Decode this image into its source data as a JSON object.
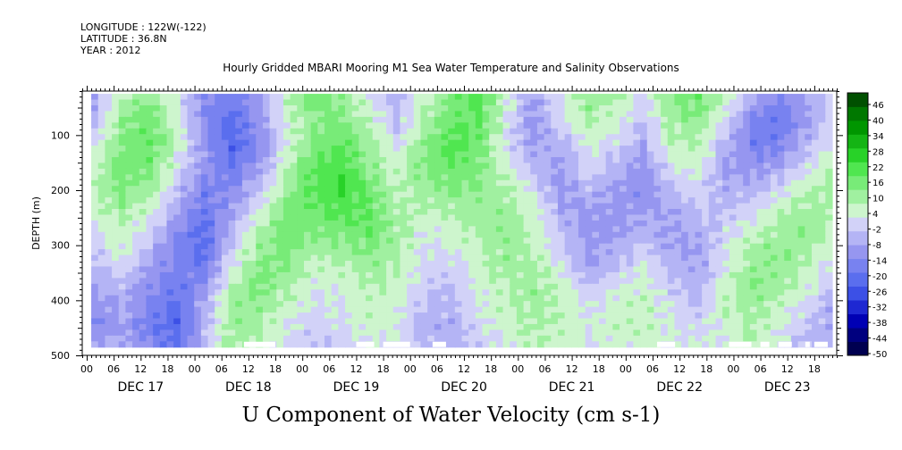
{
  "header": {
    "longitude": "LONGITUDE : 122W(-122)",
    "latitude": "LATITUDE : 36.8N",
    "year": "YEAR : 2012"
  },
  "chart_data": {
    "type": "heatmap",
    "title": "Hourly Gridded MBARI Mooring M1 Sea Water Temperature and Salinity Observations",
    "xlabel": "U Component of Water Velocity (cm s-1)",
    "ylabel": "DEPTH (m)",
    "y_ticks": [
      100,
      200,
      300,
      400,
      500
    ],
    "ylim": [
      500,
      20
    ],
    "y_inverted": true,
    "x_hour_labels": [
      "00",
      "06",
      "12",
      "18",
      "00",
      "06",
      "12",
      "18",
      "00",
      "06",
      "12",
      "18",
      "00",
      "06",
      "12",
      "18",
      "00",
      "06",
      "12",
      "18",
      "00",
      "06",
      "12",
      "18",
      "00",
      "06",
      "12",
      "18"
    ],
    "x_day_labels": [
      "DEC 17",
      "DEC 18",
      "DEC 19",
      "DEC 20",
      "DEC 21",
      "DEC 22",
      "DEC 23"
    ],
    "xlim_hours": [
      -1,
      167
    ],
    "data_start_hour": 1,
    "data_depth_range": [
      25,
      485
    ],
    "colorbar": {
      "labels": [
        "46",
        "40",
        "34",
        "28",
        "22",
        "16",
        "10",
        "4",
        "-2",
        "-8",
        "-14",
        "-20",
        "-26",
        "-32",
        "-38",
        "-44",
        "-50"
      ],
      "range": [
        -50,
        52
      ],
      "colors": [
        "#000050",
        "#00007f",
        "#0000b4",
        "#1e28d2",
        "#3c50e6",
        "#5a6eee",
        "#7882f0",
        "#9696f0",
        "#b4b4f5",
        "#d2d2f8",
        "#cdf5cd",
        "#a0f0a0",
        "#78eb78",
        "#50e650",
        "#28d228",
        "#14b414",
        "#009600",
        "#007800",
        "#005000"
      ]
    },
    "grid_hours": [
      0,
      12,
      24,
      36,
      48,
      60,
      72,
      84,
      96,
      108,
      120,
      132,
      144,
      156
    ],
    "grid_depths": [
      60,
      100,
      140,
      180,
      220,
      260,
      300,
      340,
      380,
      420,
      460
    ],
    "values": [
      [
        -8,
        10,
        14,
        2,
        -10,
        -16,
        -8,
        8,
        18,
        12,
        4,
        -6,
        6,
        16,
        22,
        6,
        -8,
        4,
        14,
        10,
        2,
        16,
        18,
        8,
        -6,
        -12,
        -6,
        4
      ],
      [
        -4,
        14,
        18,
        6,
        -12,
        -20,
        -10,
        6,
        14,
        16,
        8,
        -2,
        10,
        18,
        20,
        4,
        -10,
        2,
        10,
        6,
        -2,
        12,
        14,
        2,
        -14,
        -18,
        -8,
        2
      ],
      [
        2,
        16,
        20,
        8,
        -10,
        -22,
        -12,
        4,
        16,
        20,
        12,
        2,
        14,
        22,
        18,
        2,
        -8,
        -4,
        6,
        2,
        -6,
        8,
        10,
        -4,
        -16,
        -14,
        -4,
        6
      ],
      [
        6,
        18,
        16,
        4,
        -8,
        -18,
        -8,
        8,
        20,
        24,
        14,
        6,
        16,
        20,
        16,
        6,
        -4,
        -8,
        2,
        -4,
        -10,
        4,
        6,
        -8,
        -10,
        -6,
        2,
        10
      ],
      [
        8,
        16,
        12,
        -2,
        -14,
        -12,
        -2,
        12,
        22,
        26,
        18,
        8,
        12,
        16,
        14,
        10,
        2,
        -10,
        -4,
        -8,
        -12,
        -2,
        2,
        -6,
        -4,
        2,
        8,
        12
      ],
      [
        6,
        12,
        6,
        -8,
        -18,
        -8,
        4,
        16,
        18,
        22,
        20,
        10,
        8,
        10,
        12,
        12,
        6,
        -6,
        -8,
        -10,
        -8,
        -6,
        -2,
        -2,
        2,
        8,
        12,
        10
      ],
      [
        2,
        8,
        0,
        -12,
        -20,
        -4,
        10,
        18,
        14,
        16,
        18,
        12,
        4,
        6,
        10,
        14,
        8,
        -2,
        -10,
        -8,
        -4,
        -8,
        -6,
        2,
        8,
        12,
        14,
        6
      ],
      [
        -2,
        4,
        -6,
        -14,
        -18,
        2,
        14,
        16,
        8,
        10,
        14,
        10,
        2,
        2,
        8,
        12,
        10,
        2,
        -8,
        -4,
        2,
        -6,
        -8,
        4,
        12,
        14,
        10,
        2
      ],
      [
        -6,
        -2,
        -10,
        -16,
        -12,
        8,
        16,
        12,
        4,
        6,
        10,
        8,
        0,
        -2,
        6,
        10,
        12,
        6,
        -4,
        2,
        6,
        -2,
        -6,
        6,
        14,
        12,
        6,
        -2
      ],
      [
        -10,
        -6,
        -14,
        -20,
        -6,
        12,
        14,
        8,
        2,
        4,
        8,
        6,
        -2,
        -4,
        4,
        8,
        12,
        8,
        2,
        6,
        8,
        2,
        -2,
        8,
        12,
        8,
        2,
        -6
      ],
      [
        -12,
        -8,
        -16,
        -22,
        -4,
        12,
        10,
        4,
        0,
        2,
        6,
        4,
        -4,
        -6,
        2,
        6,
        10,
        8,
        4,
        8,
        8,
        4,
        2,
        6,
        10,
        4,
        -2,
        -8
      ],
      [
        -8,
        -4,
        -12,
        -18,
        -2,
        10,
        8,
        2,
        -2,
        0,
        4,
        2,
        -2,
        -4,
        0,
        4,
        8,
        6,
        2,
        6,
        6,
        4,
        4,
        4,
        8,
        2,
        -4,
        -6
      ]
    ],
    "no_data_bottom": [
      {
        "start_hour": 35,
        "end_hour": 42
      },
      {
        "start_hour": 60,
        "end_hour": 64
      },
      {
        "start_hour": 66,
        "end_hour": 72
      },
      {
        "start_hour": 77,
        "end_hour": 80
      },
      {
        "start_hour": 127,
        "end_hour": 131
      },
      {
        "start_hour": 143,
        "end_hour": 148
      },
      {
        "start_hour": 150,
        "end_hour": 152
      },
      {
        "start_hour": 154,
        "end_hour": 157
      },
      {
        "start_hour": 160,
        "end_hour": 161
      },
      {
        "start_hour": 162,
        "end_hour": 165
      }
    ]
  }
}
